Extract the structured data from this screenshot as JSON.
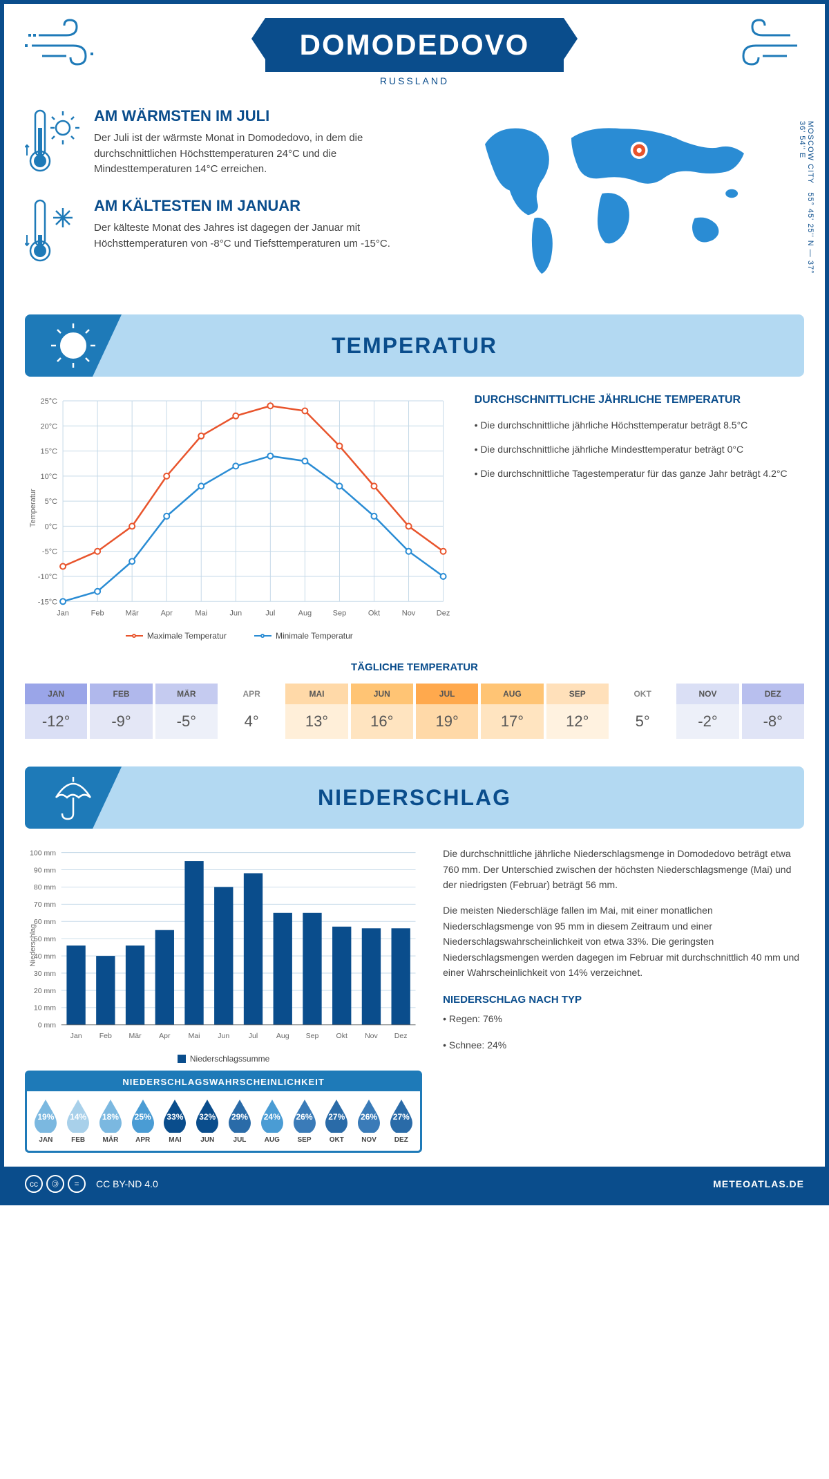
{
  "header": {
    "city": "DOMODEDOVO",
    "country": "RUSSLAND"
  },
  "coords": "55° 45' 25'' N — 37° 36' 54'' E",
  "coords_label": "MOSCOW CITY",
  "facts": {
    "warmest": {
      "title": "AM WÄRMSTEN IM JULI",
      "text": "Der Juli ist der wärmste Monat in Domodedovo, in dem die durchschnittlichen Höchsttemperaturen 24°C und die Mindesttemperaturen 14°C erreichen."
    },
    "coldest": {
      "title": "AM KÄLTESTEN IM JANUAR",
      "text": "Der kälteste Monat des Jahres ist dagegen der Januar mit Höchsttemperaturen von -8°C und Tiefsttemperaturen um -15°C."
    }
  },
  "temp_section": {
    "title": "TEMPERATUR",
    "info_title": "DURCHSCHNITTLICHE JÄHRLICHE TEMPERATUR",
    "bullet1": "• Die durchschnittliche jährliche Höchsttemperatur beträgt 8.5°C",
    "bullet2": "• Die durchschnittliche jährliche Mindesttemperatur beträgt 0°C",
    "bullet3": "• Die durchschnittliche Tagestemperatur für das ganze Jahr beträgt 4.2°C",
    "legend_max": "Maximale Temperatur",
    "legend_min": "Minimale Temperatur",
    "ylabel": "Temperatur"
  },
  "temp_chart": {
    "type": "line",
    "months": [
      "Jan",
      "Feb",
      "Mär",
      "Apr",
      "Mai",
      "Jun",
      "Jul",
      "Aug",
      "Sep",
      "Okt",
      "Nov",
      "Dez"
    ],
    "max_values": [
      -8,
      -5,
      0,
      10,
      18,
      22,
      24,
      23,
      16,
      8,
      0,
      -5
    ],
    "min_values": [
      -15,
      -13,
      -7,
      2,
      8,
      12,
      14,
      13,
      8,
      2,
      -5,
      -10
    ],
    "max_color": "#e8542c",
    "min_color": "#2a8cd4",
    "ylim": [
      -15,
      25
    ],
    "ytick_step": 5,
    "grid_color": "#c5d9e8",
    "background": "#ffffff"
  },
  "daily_temp": {
    "title": "TÄGLICHE TEMPERATUR",
    "months": [
      "JAN",
      "FEB",
      "MÄR",
      "APR",
      "MAI",
      "JUN",
      "JUL",
      "AUG",
      "SEP",
      "OKT",
      "NOV",
      "DEZ"
    ],
    "values": [
      "-12°",
      "-9°",
      "-5°",
      "4°",
      "13°",
      "16°",
      "19°",
      "17°",
      "12°",
      "5°",
      "-2°",
      "-8°"
    ],
    "head_colors": [
      "#9aa5e8",
      "#b0b8ec",
      "#c5cbf0",
      "#ffffff",
      "#ffd9a8",
      "#ffc474",
      "#ffa94d",
      "#ffc474",
      "#ffe0ba",
      "#ffffff",
      "#dadff5",
      "#b8bfee"
    ],
    "val_colors": [
      "#dadff5",
      "#e4e7f6",
      "#edf0f9",
      "#ffffff",
      "#ffefd9",
      "#ffe4c0",
      "#ffd9a8",
      "#ffe4c0",
      "#fff2e0",
      "#ffffff",
      "#edf0f9",
      "#e0e4f6"
    ]
  },
  "precip_section": {
    "title": "NIEDERSCHLAG",
    "para1": "Die durchschnittliche jährliche Niederschlagsmenge in Domodedovo beträgt etwa 760 mm. Der Unterschied zwischen der höchsten Niederschlagsmenge (Mai) und der niedrigsten (Februar) beträgt 56 mm.",
    "para2": "Die meisten Niederschläge fallen im Mai, mit einer monatlichen Niederschlagsmenge von 95 mm in diesem Zeitraum und einer Niederschlagswahrscheinlichkeit von etwa 33%. Die geringsten Niederschlagsmengen werden dagegen im Februar mit durchschnittlich 40 mm und einer Wahrscheinlichkeit von 14% verzeichnet.",
    "type_title": "NIEDERSCHLAG NACH TYP",
    "type_rain": "• Regen: 76%",
    "type_snow": "• Schnee: 24%",
    "legend": "Niederschlagssumme",
    "ylabel": "Niederschlag"
  },
  "precip_chart": {
    "type": "bar",
    "months": [
      "Jan",
      "Feb",
      "Mär",
      "Apr",
      "Mai",
      "Jun",
      "Jul",
      "Aug",
      "Sep",
      "Okt",
      "Nov",
      "Dez"
    ],
    "values": [
      46,
      40,
      46,
      55,
      95,
      80,
      88,
      65,
      65,
      57,
      56,
      56
    ],
    "bar_color": "#0a4d8c",
    "ylim": [
      0,
      100
    ],
    "ytick_step": 10,
    "grid_color": "#c5d9e8"
  },
  "probability": {
    "title": "NIEDERSCHLAGSWAHRSCHEINLICHKEIT",
    "months": [
      "JAN",
      "FEB",
      "MÄR",
      "APR",
      "MAI",
      "JUN",
      "JUL",
      "AUG",
      "SEP",
      "OKT",
      "NOV",
      "DEZ"
    ],
    "values": [
      "19%",
      "14%",
      "18%",
      "25%",
      "33%",
      "32%",
      "29%",
      "24%",
      "26%",
      "27%",
      "26%",
      "27%"
    ],
    "colors": [
      "#7bb8e0",
      "#a8d0ea",
      "#7bb8e0",
      "#4a9cd4",
      "#0a4d8c",
      "#0a4d8c",
      "#2a6ba8",
      "#4a9cd4",
      "#3a7bb8",
      "#2a6ba8",
      "#3a7bb8",
      "#2a6ba8"
    ]
  },
  "footer": {
    "license": "CC BY-ND 4.0",
    "site": "METEOATLAS.DE"
  }
}
